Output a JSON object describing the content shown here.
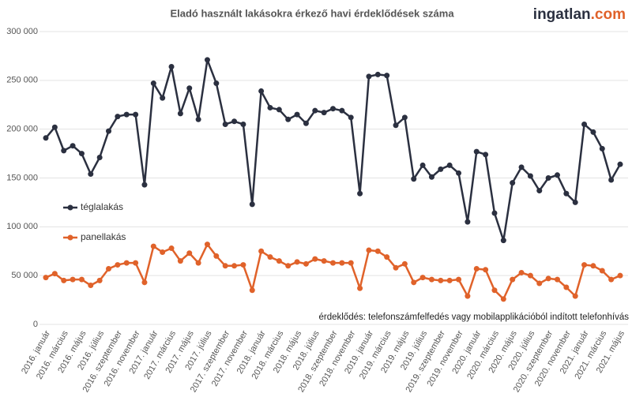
{
  "chart_data": {
    "type": "line",
    "title": "Eladó használt lakásokra érkező havi érdeklődések száma",
    "logo": {
      "name": "ingatlan",
      "suffix": ".com"
    },
    "annotation": "érdeklődés: telefonszámfelfedés vagy mobilapplikációból indított telefonhívás",
    "categories": [
      "2016. január",
      null,
      "2016. március",
      null,
      "2016. május",
      null,
      "2016. július",
      null,
      "2016. szeptember",
      null,
      "2016. november",
      null,
      "2017. január",
      null,
      "2017. március",
      null,
      "2017. május",
      null,
      "2017. július",
      null,
      "2017. szeptember",
      null,
      "2017. november",
      null,
      "2018. január",
      null,
      "2018. március",
      null,
      "2018. május",
      null,
      "2018. július",
      null,
      "2018. szeptember",
      null,
      "2018. november",
      null,
      "2019. január",
      null,
      "2019. március",
      null,
      "2019. május",
      null,
      "2019. július",
      null,
      "2019. szeptember",
      null,
      "2019. november",
      null,
      "2020. január",
      null,
      "2020. március",
      null,
      "2020. május",
      null,
      "2020. július",
      null,
      "2020. szeptember",
      null,
      "2020. november",
      null,
      "2021. január",
      null,
      "2021. március",
      null,
      "2021. május"
    ],
    "series": [
      {
        "name": "téglalakás",
        "color": "#2b3040",
        "values": [
          191000,
          202000,
          178000,
          183000,
          175000,
          154000,
          171000,
          198000,
          213000,
          215000,
          215000,
          143000,
          247000,
          232000,
          264000,
          216000,
          242000,
          210000,
          271000,
          247000,
          205000,
          208000,
          205000,
          123000,
          239000,
          222000,
          220000,
          210000,
          215000,
          206000,
          219000,
          217000,
          221000,
          219000,
          212000,
          134000,
          254000,
          256000,
          255000,
          204000,
          212000,
          149000,
          163000,
          151000,
          159000,
          163000,
          155000,
          105000,
          177000,
          174000,
          114000,
          86000,
          145000,
          161000,
          152000,
          137000,
          150000,
          153000,
          134000,
          125000,
          205000,
          197000,
          180000,
          148000,
          164000
        ]
      },
      {
        "name": "panellakás",
        "color": "#e0622a",
        "values": [
          48000,
          52000,
          45000,
          46000,
          46000,
          40000,
          45000,
          57000,
          61000,
          63000,
          63000,
          43000,
          80000,
          74000,
          78000,
          65000,
          73000,
          63000,
          82000,
          70000,
          60000,
          60000,
          61000,
          35000,
          75000,
          69000,
          65000,
          60000,
          64000,
          62000,
          67000,
          65000,
          63000,
          63000,
          63000,
          37000,
          76000,
          75000,
          69000,
          58000,
          62000,
          43000,
          48000,
          46000,
          45000,
          45000,
          46000,
          29000,
          57000,
          56000,
          35000,
          26000,
          46000,
          53000,
          50000,
          42000,
          47000,
          46000,
          38000,
          29000,
          61000,
          60000,
          55000,
          46000,
          50000
        ]
      }
    ],
    "ylim": [
      0,
      300000
    ],
    "yticks": [
      0,
      {
        "value": 50000,
        "label": "50 000"
      },
      {
        "value": 100000,
        "label": "100 000"
      },
      {
        "value": 150000,
        "label": "150 000"
      },
      {
        "value": 200000,
        "label": "200 000"
      },
      {
        "value": 250000,
        "label": "250 000"
      },
      {
        "value": 300000,
        "label": "300 000"
      }
    ],
    "grid": true
  }
}
